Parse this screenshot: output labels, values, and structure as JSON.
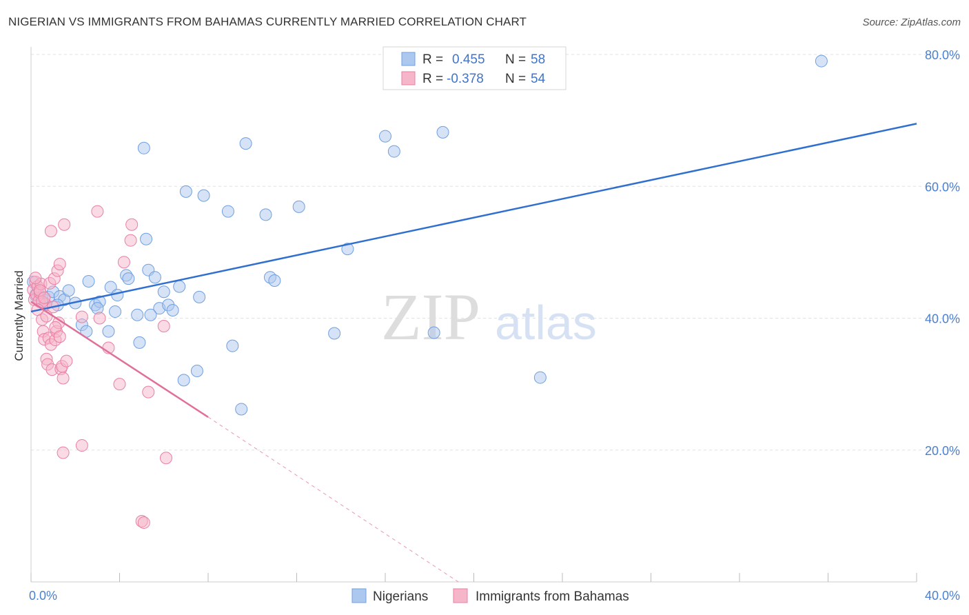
{
  "title": "NIGERIAN VS IMMIGRANTS FROM BAHAMAS CURRENTLY MARRIED CORRELATION CHART",
  "source": "Source: ZipAtlas.com",
  "watermark": {
    "zip": "ZIP",
    "atlas": "atlas"
  },
  "colors": {
    "blue_fill": "#adc8ef",
    "blue_stroke": "#6f9fe0",
    "blue_line": "#2f6fcf",
    "pink_fill": "#f5b6ca",
    "pink_stroke": "#ea7fa3",
    "pink_line": "#e06f99",
    "grid": "#e2e2e2",
    "axis_label": "#4b7fcf"
  },
  "legend": {
    "r_label": "R =",
    "n_label": "N =",
    "series": [
      {
        "r": "0.455",
        "n": "58"
      },
      {
        "r": "-0.378",
        "n": "54"
      }
    ]
  },
  "chart_data": {
    "type": "scatter",
    "title": "NIGERIAN VS IMMIGRANTS FROM BAHAMAS CURRENTLY MARRIED CORRELATION CHART",
    "xlabel": "",
    "ylabel": "Currently Married",
    "xlim": [
      0,
      40
    ],
    "ylim": [
      0,
      82
    ],
    "x_tick_labels": [
      "0.0%",
      "40.0%"
    ],
    "y_ticks": [
      20,
      40,
      60,
      80
    ],
    "y_tick_labels": [
      "20.0%",
      "40.0%",
      "60.0%",
      "80.0%"
    ],
    "grid": true,
    "legend_position": "top-center",
    "series": [
      {
        "name": "Nigerians",
        "color": "#adc8ef",
        "r": 0.455,
        "n": 58,
        "trend": {
          "x": [
            0.0,
            40.0
          ],
          "y": [
            41.0,
            69.5
          ],
          "dashed_extension": false
        },
        "points": [
          [
            0.1,
            45.5
          ],
          [
            0.2,
            43.5
          ],
          [
            0.3,
            44.0
          ],
          [
            0.4,
            42.5
          ],
          [
            0.5,
            43.0
          ],
          [
            0.6,
            42.3
          ],
          [
            0.8,
            43.2
          ],
          [
            1.0,
            44.0
          ],
          [
            1.3,
            43.3
          ],
          [
            1.5,
            42.8
          ],
          [
            1.7,
            44.2
          ],
          [
            2.0,
            42.3
          ],
          [
            2.6,
            45.6
          ],
          [
            2.9,
            42.0
          ],
          [
            3.1,
            42.5
          ],
          [
            3.6,
            44.7
          ],
          [
            3.9,
            43.5
          ],
          [
            4.3,
            46.5
          ],
          [
            4.4,
            46.0
          ],
          [
            4.8,
            40.5
          ],
          [
            5.1,
            65.8
          ],
          [
            5.3,
            47.3
          ],
          [
            5.6,
            46.2
          ],
          [
            5.8,
            41.5
          ],
          [
            6.0,
            44.0
          ],
          [
            6.2,
            42.0
          ],
          [
            6.4,
            41.2
          ],
          [
            6.7,
            44.8
          ],
          [
            7.0,
            59.2
          ],
          [
            7.6,
            43.2
          ],
          [
            7.8,
            58.6
          ],
          [
            8.9,
            56.2
          ],
          [
            9.1,
            35.8
          ],
          [
            9.7,
            66.5
          ],
          [
            10.6,
            55.7
          ],
          [
            10.8,
            46.2
          ],
          [
            11.0,
            45.7
          ],
          [
            12.1,
            56.9
          ],
          [
            13.7,
            37.7
          ],
          [
            14.3,
            50.5
          ],
          [
            16.0,
            67.6
          ],
          [
            16.4,
            65.3
          ],
          [
            18.2,
            37.8
          ],
          [
            18.6,
            68.2
          ],
          [
            23.0,
            31.0
          ],
          [
            35.7,
            79.0
          ],
          [
            1.2,
            42.0
          ],
          [
            2.3,
            39.0
          ],
          [
            2.5,
            38.0
          ],
          [
            3.5,
            38.0
          ],
          [
            3.8,
            41.0
          ],
          [
            4.9,
            36.3
          ],
          [
            5.4,
            40.5
          ],
          [
            6.9,
            30.6
          ],
          [
            7.5,
            32.0
          ],
          [
            9.5,
            26.2
          ],
          [
            5.2,
            52.0
          ],
          [
            3.0,
            41.5
          ]
        ]
      },
      {
        "name": "Immigrants from Bahamas",
        "color": "#f5b6ca",
        "r": -0.378,
        "n": 54,
        "trend": {
          "x": [
            0.0,
            8.0
          ],
          "y": [
            42.5,
            25.0
          ],
          "dashed_extension": true,
          "dashed_to": [
            19.3,
            0.0
          ]
        },
        "points": [
          [
            0.1,
            44.3
          ],
          [
            0.15,
            42.8
          ],
          [
            0.2,
            45.5
          ],
          [
            0.25,
            43.6
          ],
          [
            0.3,
            44.8
          ],
          [
            0.35,
            42.6
          ],
          [
            0.4,
            43.9
          ],
          [
            0.45,
            45.2
          ],
          [
            0.5,
            39.8
          ],
          [
            0.55,
            38.0
          ],
          [
            0.6,
            36.8
          ],
          [
            0.65,
            42.1
          ],
          [
            0.7,
            33.8
          ],
          [
            0.75,
            33.0
          ],
          [
            0.8,
            37.0
          ],
          [
            0.85,
            45.3
          ],
          [
            0.9,
            36.0
          ],
          [
            0.95,
            32.2
          ],
          [
            1.0,
            41.7
          ],
          [
            1.05,
            46.0
          ],
          [
            1.1,
            36.7
          ],
          [
            1.15,
            38.0
          ],
          [
            1.2,
            47.2
          ],
          [
            1.25,
            39.3
          ],
          [
            1.3,
            48.2
          ],
          [
            1.35,
            32.3
          ],
          [
            1.4,
            32.7
          ],
          [
            1.45,
            30.9
          ],
          [
            1.5,
            54.2
          ],
          [
            1.6,
            33.5
          ],
          [
            0.9,
            53.2
          ],
          [
            2.3,
            20.7
          ],
          [
            2.3,
            40.2
          ],
          [
            3.0,
            56.2
          ],
          [
            3.1,
            40.0
          ],
          [
            3.5,
            35.5
          ],
          [
            4.0,
            30.0
          ],
          [
            4.2,
            48.5
          ],
          [
            4.5,
            51.8
          ],
          [
            4.55,
            54.2
          ],
          [
            5.0,
            9.2
          ],
          [
            5.1,
            9.0
          ],
          [
            5.3,
            28.8
          ],
          [
            6.0,
            38.8
          ],
          [
            6.1,
            18.8
          ],
          [
            1.45,
            19.6
          ],
          [
            0.5,
            42.5
          ],
          [
            0.3,
            41.3
          ],
          [
            0.7,
            40.3
          ],
          [
            1.1,
            38.6
          ],
          [
            0.4,
            44.2
          ],
          [
            0.6,
            43.1
          ],
          [
            0.2,
            46.1
          ],
          [
            1.3,
            37.2
          ]
        ]
      }
    ]
  }
}
